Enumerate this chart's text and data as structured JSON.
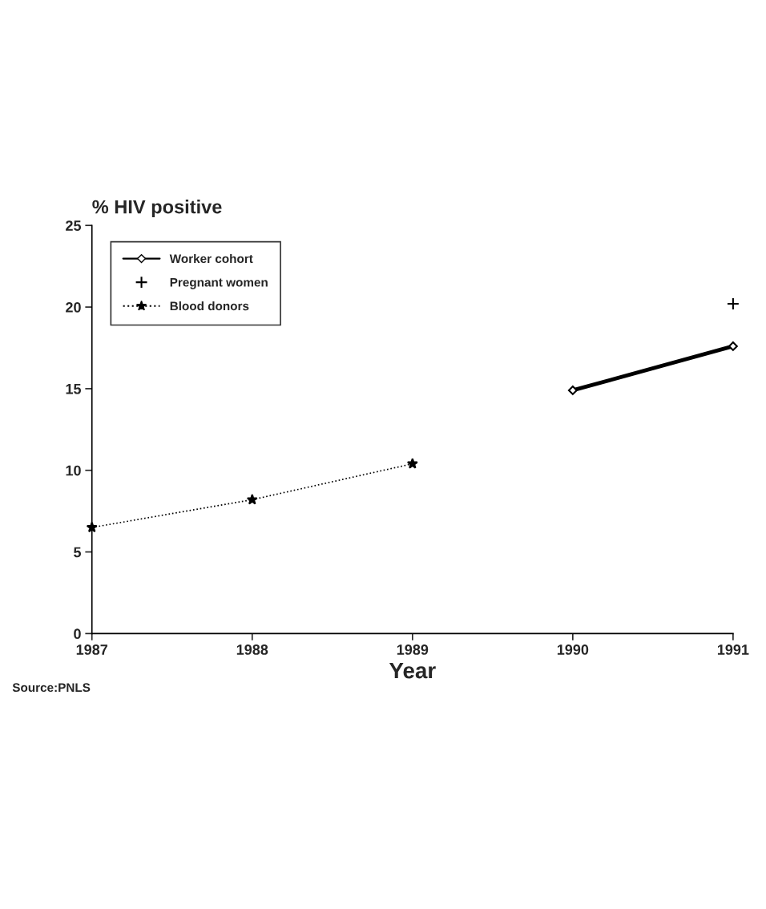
{
  "chart_data": {
    "type": "line",
    "ylabel": "% HIV positive",
    "xlabel": "Year",
    "x": [
      1987,
      1988,
      1989,
      1990,
      1991
    ],
    "series": [
      {
        "name": "Worker cohort",
        "color": "#000000",
        "values": [
          null,
          null,
          null,
          14.9,
          17.6
        ],
        "marker": "diamond",
        "line_style": "solid"
      },
      {
        "name": "Pregnant women",
        "color": "#000000",
        "type": "scatter",
        "values": [
          null,
          null,
          null,
          null,
          20.2
        ],
        "marker": "cross"
      },
      {
        "name": "Blood donors",
        "color": "#000000",
        "values": [
          6.5,
          8.2,
          10.4,
          null,
          null
        ],
        "marker": "star",
        "line_style": "dotted"
      }
    ],
    "xlim": [
      1987,
      1991
    ],
    "xticks": [
      1987,
      1988,
      1989,
      1990,
      1991
    ],
    "ylim": [
      0,
      25
    ],
    "yticks": [
      0,
      5,
      10,
      15,
      20,
      25
    ],
    "grid": false,
    "legend": "top left",
    "annotations": [
      "Source:PNLS"
    ]
  }
}
